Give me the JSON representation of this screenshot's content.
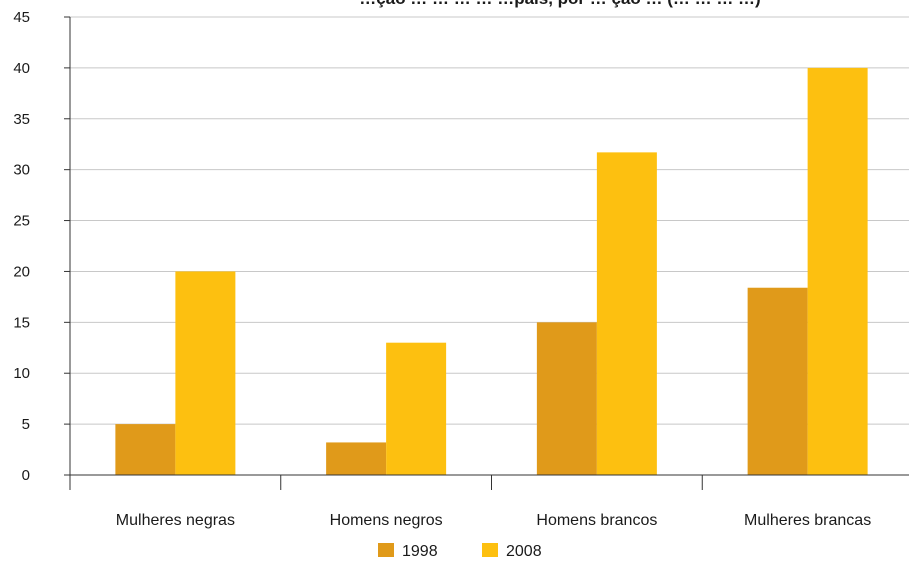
{
  "chart_data": {
    "type": "bar",
    "title": "…ção … … … … …pais, por … ção … (… … … …)",
    "categories": [
      "Mulheres negras",
      "Homens negros",
      "Homens brancos",
      "Mulheres brancas"
    ],
    "series": [
      {
        "name": "1998",
        "values": [
          5,
          3.2,
          15,
          18.4
        ],
        "color": "#E09A1A"
      },
      {
        "name": "2008",
        "values": [
          20,
          13,
          31.7,
          40
        ],
        "color": "#FDC010"
      }
    ],
    "ylim": [
      0,
      45
    ],
    "yticks": [
      0,
      5,
      10,
      15,
      20,
      25,
      30,
      35,
      40,
      45
    ],
    "grid": true,
    "legend_position": "bottom-center",
    "xlabel": "",
    "ylabel": ""
  }
}
